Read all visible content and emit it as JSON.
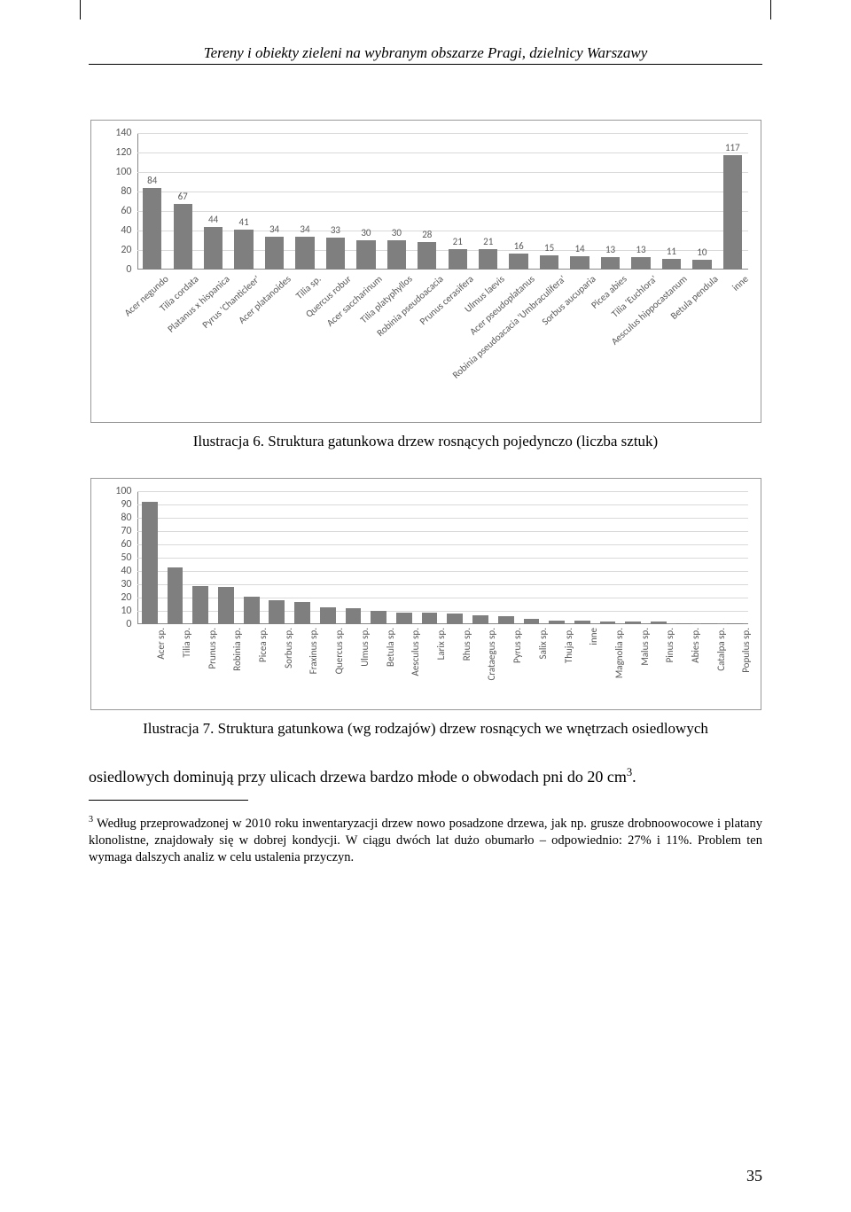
{
  "header": {
    "title": "Tereny i obiekty zieleni na wybranym obszarze Pragi, dzielnicy Warszawy"
  },
  "chart1": {
    "type": "bar",
    "ymax": 140,
    "ytick_step": 20,
    "yticks": [
      0,
      20,
      40,
      60,
      80,
      100,
      120,
      140
    ],
    "bar_color": "#7f7f7f",
    "grid_color": "#d9d9d9",
    "border_color": "#999999",
    "label_color": "#595959",
    "label_fontsize": 11,
    "categories": [
      "Acer negundo",
      "Tilia cordata",
      "Platanus x hispanica",
      "Pyrus 'Chanticleer'",
      "Acer platanoides",
      "Tilia sp.",
      "Quercus robur",
      "Acer saccharinum",
      "Tilia platyphyllos",
      "Robinia pseudoacacia",
      "Prunus cerasifera",
      "Ulmus laevis",
      "Acer pseudoplatanus",
      "Robinia pseudoacacia 'Umbraculifera'",
      "Sorbus aucuparia",
      "Picea abies",
      "Tilia 'Euchlora'",
      "Aesculus hippocastanum",
      "Betula pendula",
      "inne"
    ],
    "values": [
      84,
      67,
      44,
      41,
      34,
      34,
      33,
      30,
      30,
      28,
      21,
      21,
      16,
      15,
      14,
      13,
      13,
      11,
      10,
      117
    ],
    "caption": "Ilustracja 6. Struktura gatunkowa drzew rosnących pojedynczo (liczba sztuk)"
  },
  "chart2": {
    "type": "bar",
    "ymax": 100,
    "ytick_step": 10,
    "yticks": [
      0,
      10,
      20,
      30,
      40,
      50,
      60,
      70,
      80,
      90,
      100
    ],
    "bar_color": "#7f7f7f",
    "grid_color": "#d9d9d9",
    "border_color": "#999999",
    "label_color": "#595959",
    "label_fontsize": 11,
    "categories": [
      "Acer sp.",
      "Tilia sp.",
      "Prunus sp.",
      "Robinia sp.",
      "Picea sp.",
      "Sorbus sp.",
      "Fraxinus sp.",
      "Quercus sp.",
      "Ulmus sp.",
      "Betula sp.",
      "Aesculus sp.",
      "Larix sp.",
      "Rhus sp.",
      "Crataegus sp.",
      "Pyrus sp.",
      "Salix sp.",
      "Thuja sp.",
      "inne",
      "Magnolia sp.",
      "Malus sp.",
      "Pinus sp.",
      "Abies sp.",
      "Catalpa sp.",
      "Populus sp."
    ],
    "values": [
      92,
      43,
      29,
      28,
      21,
      18,
      17,
      13,
      12,
      10,
      9,
      9,
      8,
      7,
      6,
      4,
      3,
      3,
      2,
      2,
      2,
      1,
      1,
      1
    ],
    "caption": "Ilustracja 7. Struktura gatunkowa (wg rodzajów) drzew rosnących we wnętrzach osiedlowych"
  },
  "body": {
    "p1a": "osiedlowych dominują przy ulicach drzewa bardzo młode o obwodach pni do 20 cm",
    "p1b": "."
  },
  "footnote": {
    "marker": "3",
    "text": " Według przeprowadzonej w 2010 roku inwentaryzacji drzew nowo posadzone drzewa, jak np. grusze drobnoowocowe i platany klonolistne, znajdowały się w dobrej kondycji. W ciągu dwóch lat dużo obumarło – odpowiednio: 27% i 11%. Problem ten wymaga dalszych analiz w celu ustalenia przyczyn."
  },
  "pagenum": "35"
}
